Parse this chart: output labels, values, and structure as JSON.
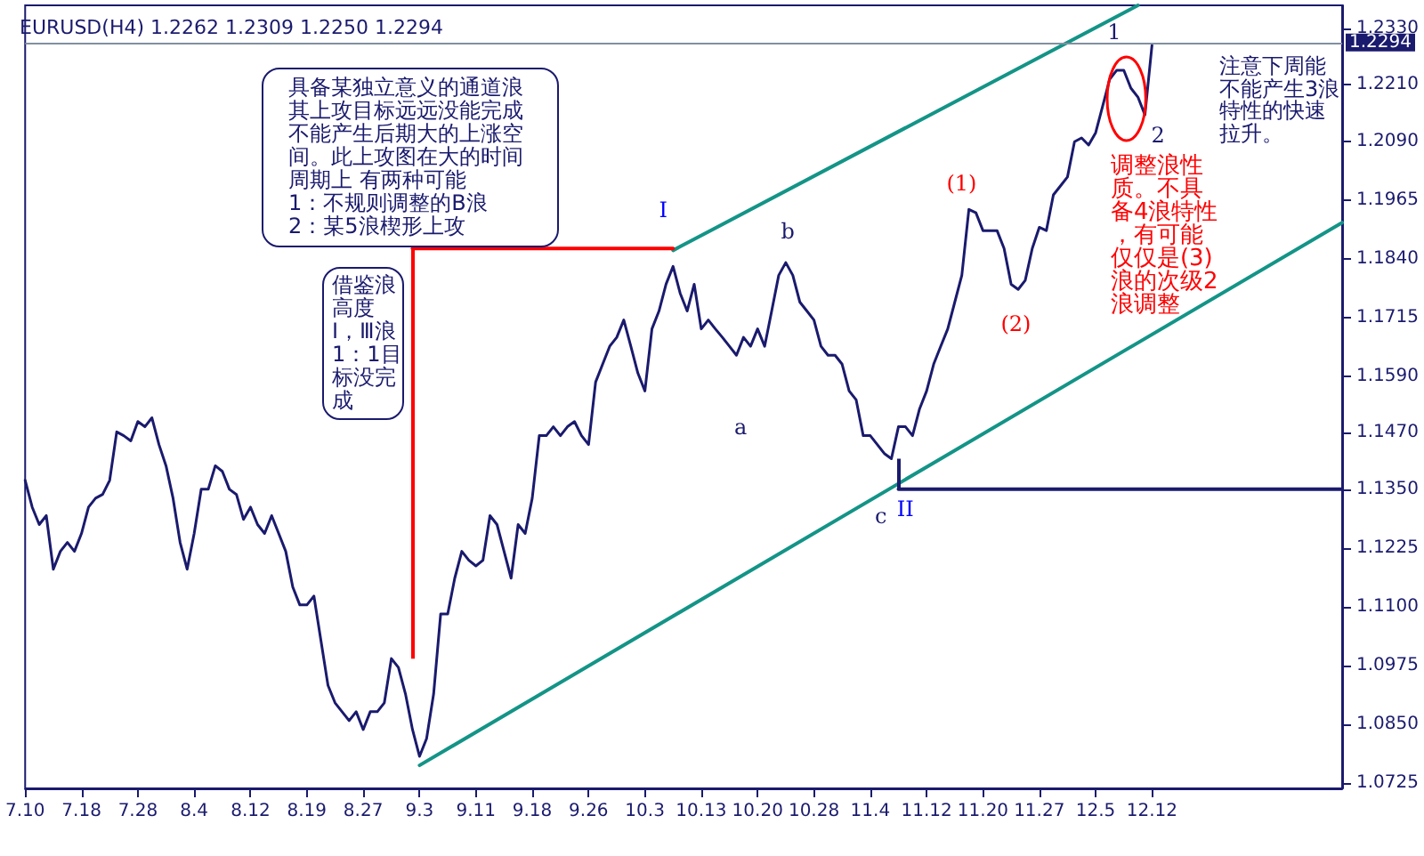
{
  "chart_data": {
    "type": "line",
    "title": "EURUSD(H4) 1.2262 1.2309 1.2250 1.2294",
    "categories": [
      "7.10",
      null,
      null,
      null,
      null,
      null,
      null,
      null,
      "7.18",
      null,
      null,
      null,
      null,
      null,
      null,
      null,
      "7.28",
      null,
      null,
      null,
      null,
      null,
      null,
      null,
      "8.4",
      null,
      null,
      null,
      null,
      null,
      null,
      null,
      "8.12",
      null,
      null,
      null,
      null,
      null,
      null,
      null,
      "8.19",
      null,
      null,
      null,
      null,
      null,
      null,
      null,
      "8.27",
      null,
      null,
      null,
      null,
      null,
      null,
      null,
      "9.3",
      null,
      null,
      null,
      null,
      null,
      null,
      null,
      "9.11",
      null,
      null,
      null,
      null,
      null,
      null,
      null,
      "9.18",
      null,
      null,
      null,
      null,
      null,
      null,
      null,
      "9.26",
      null,
      null,
      null,
      null,
      null,
      null,
      null,
      "10.3",
      null,
      null,
      null,
      null,
      null,
      null,
      null,
      "10.13",
      null,
      null,
      null,
      null,
      null,
      null,
      null,
      "10.20",
      null,
      null,
      null,
      null,
      null,
      null,
      null,
      "10.28",
      null,
      null,
      null,
      null,
      null,
      null,
      null,
      "11.4",
      null,
      null,
      null,
      null,
      null,
      null,
      null,
      "11.12",
      null,
      null,
      null,
      null,
      null,
      null,
      null,
      "11.20",
      null,
      null,
      null,
      null,
      null,
      null,
      null,
      "11.27",
      null,
      null,
      null,
      null,
      null,
      null,
      null,
      "12.5",
      null,
      null,
      null,
      null,
      null,
      null,
      null,
      "12.12",
      null,
      null,
      null,
      null,
      null,
      null,
      null,
      null,
      null,
      null,
      null,
      null,
      null,
      null,
      null,
      null,
      null,
      null,
      null,
      null,
      null,
      null,
      null,
      null,
      null,
      null,
      null
    ],
    "series": [
      {
        "color": "#1a1a6e",
        "values": [
          1.1369,
          1.1312,
          1.1275,
          1.1294,
          1.118,
          1.1218,
          1.1237,
          1.1218,
          1.1256,
          1.1312,
          1.1331,
          1.1339,
          1.1369,
          1.1472,
          1.1464,
          1.1453,
          1.1494,
          1.1483,
          1.1502,
          1.1445,
          1.14,
          1.1331,
          1.1237,
          1.118,
          1.1256,
          1.135,
          1.135,
          1.14,
          1.1388,
          1.135,
          1.1339,
          1.1286,
          1.1312,
          1.1275,
          1.1256,
          1.1294,
          1.1256,
          1.1218,
          1.1142,
          1.1104,
          1.1104,
          1.1123,
          1.1028,
          1.0933,
          1.0896,
          1.0877,
          1.0858,
          1.0877,
          1.0839,
          1.0877,
          1.0877,
          1.0896,
          1.099,
          1.0971,
          1.0915,
          1.0839,
          1.0782,
          1.082,
          1.0915,
          1.1085,
          1.1085,
          1.1161,
          1.1218,
          1.1199,
          1.1187,
          1.1199,
          1.1294,
          1.1275,
          1.1218,
          1.1161,
          1.1275,
          1.1256,
          1.1331,
          1.1464,
          1.1464,
          1.1483,
          1.1464,
          1.1483,
          1.1494,
          1.1464,
          1.1445,
          1.1578,
          1.1616,
          1.1654,
          1.1673,
          1.171,
          1.1654,
          1.1597,
          1.1559,
          1.1691,
          1.1729,
          1.1786,
          1.1824,
          1.1767,
          1.1729,
          1.1786,
          1.1691,
          1.171,
          1.1691,
          1.1673,
          1.1654,
          1.1635,
          1.1673,
          1.1654,
          1.1691,
          1.1654,
          1.1729,
          1.1805,
          1.1832,
          1.1805,
          1.1748,
          1.1729,
          1.171,
          1.1654,
          1.1635,
          1.1635,
          1.1616,
          1.1559,
          1.154,
          1.1464,
          1.1464,
          1.1445,
          1.1426,
          1.1415,
          1.1483,
          1.1483,
          1.1464,
          1.1521,
          1.1559,
          1.1616,
          1.1654,
          1.1691,
          1.1748,
          1.1805,
          1.1945,
          1.1938,
          1.19,
          1.19,
          1.19,
          1.1862,
          1.1786,
          1.1775,
          1.1794,
          1.1862,
          1.1907,
          1.19,
          1.1976,
          1.1995,
          1.2014,
          1.2089,
          1.2097,
          1.2082,
          1.2108,
          1.2165,
          1.2222,
          1.2241,
          1.2241,
          1.2203,
          1.2184,
          1.2146,
          1.2294,
          null,
          null,
          null,
          null,
          null,
          null,
          null,
          null,
          null,
          null,
          null,
          null,
          null,
          null,
          null,
          null,
          null,
          null,
          null,
          null,
          null,
          null,
          null,
          null,
          null,
          null,
          null
        ]
      },
      {
        "color": "#139487",
        "values": [
          null,
          null,
          null,
          null,
          null,
          null,
          null,
          null,
          null,
          null,
          null,
          null,
          null,
          null,
          null,
          null,
          null,
          null,
          null,
          null,
          null,
          null,
          null,
          null,
          null,
          null,
          null,
          null,
          null,
          null,
          null,
          null,
          null,
          null,
          null,
          null,
          null,
          null,
          null,
          null,
          null,
          null,
          null,
          null,
          null,
          null,
          null,
          null,
          null,
          null,
          null,
          null,
          null,
          null,
          null,
          null,
          null,
          null,
          null,
          null,
          null,
          null,
          null,
          null,
          null,
          null,
          null,
          null,
          null,
          null,
          null,
          null,
          null,
          null,
          null,
          null,
          null,
          null,
          null,
          null,
          null,
          null,
          null,
          null,
          null,
          null,
          null,
          null,
          null,
          null,
          null,
          null,
          1.1858,
          null,
          null,
          null,
          null,
          null,
          null,
          null,
          null,
          null,
          null,
          null,
          null,
          null,
          null,
          null,
          null,
          null,
          null,
          null,
          null,
          null,
          null,
          null,
          null,
          null,
          null,
          null,
          null,
          null,
          null,
          null,
          null,
          null,
          null,
          null,
          null,
          null,
          null,
          null,
          null,
          null,
          null,
          null,
          null,
          null,
          null,
          null,
          null,
          null,
          null,
          null,
          null,
          null,
          null,
          null,
          null,
          null,
          null,
          null,
          null,
          null,
          null,
          null,
          null,
          null,
          1.2379,
          null,
          null,
          null,
          null,
          null,
          null,
          null,
          null,
          null,
          null,
          null,
          null,
          null,
          null,
          null,
          null,
          null,
          null,
          null,
          null,
          null,
          null,
          null,
          null,
          null,
          null,
          null,
          null,
          null
        ]
      },
      {
        "color": "#139487",
        "values": [
          null,
          null,
          null,
          null,
          null,
          null,
          null,
          null,
          null,
          null,
          null,
          null,
          null,
          null,
          null,
          null,
          null,
          null,
          null,
          null,
          null,
          null,
          null,
          null,
          null,
          null,
          null,
          null,
          null,
          null,
          null,
          null,
          null,
          null,
          null,
          null,
          null,
          null,
          null,
          null,
          null,
          null,
          null,
          null,
          null,
          null,
          null,
          null,
          null,
          null,
          null,
          null,
          null,
          null,
          null,
          null,
          1.0763,
          null,
          null,
          null,
          null,
          null,
          null,
          null,
          null,
          null,
          null,
          null,
          null,
          null,
          null,
          null,
          null,
          null,
          null,
          null,
          null,
          null,
          null,
          null,
          null,
          null,
          null,
          null,
          null,
          null,
          null,
          null,
          null,
          null,
          null,
          null,
          null,
          null,
          null,
          null,
          null,
          null,
          null,
          null,
          null,
          null,
          null,
          null,
          null,
          null,
          null,
          null,
          null,
          null,
          null,
          null,
          null,
          null,
          null,
          null,
          null,
          null,
          null,
          null,
          null,
          null,
          null,
          null,
          null,
          null,
          null,
          null,
          null,
          null,
          null,
          null,
          null,
          null,
          null,
          null,
          null,
          null,
          null,
          null,
          null,
          null,
          null,
          null,
          null,
          null,
          null,
          null,
          null,
          null,
          null,
          null,
          null,
          null,
          null,
          null,
          null,
          null,
          null,
          null,
          null,
          null,
          null,
          null,
          null,
          null,
          null,
          null,
          null,
          null,
          null,
          null,
          null,
          null,
          null,
          null,
          null,
          null,
          null,
          null,
          null,
          null,
          null,
          null,
          null,
          null,
          null,
          1.1917
        ]
      },
      {
        "color": "#ff0000",
        "values": [
          null,
          null,
          null,
          null,
          null,
          null,
          null,
          null,
          null,
          null,
          null,
          null,
          null,
          null,
          null,
          null,
          null,
          null,
          null,
          null,
          null,
          null,
          null,
          null,
          null,
          null,
          null,
          null,
          null,
          null,
          null,
          null,
          null,
          null,
          null,
          null,
          null,
          null,
          null,
          null,
          null,
          null,
          null,
          null,
          null,
          null,
          null,
          null,
          null,
          null,
          null,
          null,
          null,
          null,
          null,
          1.1862,
          null,
          null,
          null,
          null,
          null,
          null,
          null,
          null,
          null,
          null,
          null,
          null,
          null,
          null,
          null,
          null,
          null,
          null,
          null,
          null,
          null,
          null,
          null,
          null,
          null,
          null,
          null,
          null,
          null,
          null,
          null,
          null,
          null,
          null,
          null,
          null,
          1.1862,
          null,
          null,
          null,
          null,
          null,
          null,
          null,
          null,
          null,
          null,
          null,
          null,
          null,
          null,
          null,
          null,
          null,
          null,
          null,
          null,
          null,
          null,
          null,
          null,
          null,
          null,
          null,
          null,
          null,
          null,
          null,
          null,
          null,
          null,
          null,
          null,
          null,
          null,
          null,
          null,
          null,
          null,
          null,
          null,
          null,
          null,
          null,
          null,
          null,
          null,
          null,
          null,
          null,
          null,
          null,
          null,
          null,
          null,
          null,
          null,
          null,
          null,
          null,
          null,
          null,
          null,
          null,
          null,
          null,
          null,
          null,
          null,
          null,
          null,
          null,
          null,
          null,
          null,
          null,
          null,
          null,
          null,
          null,
          null,
          null,
          null,
          null,
          null,
          null,
          null,
          null,
          null,
          null,
          null,
          null
        ],
        "errors": [
          null,
          null,
          null,
          null,
          null,
          null,
          null,
          null,
          null,
          null,
          null,
          null,
          null,
          null,
          null,
          null,
          null,
          null,
          null,
          null,
          null,
          null,
          null,
          null,
          null,
          null,
          null,
          null,
          null,
          null,
          null,
          null,
          null,
          null,
          null,
          null,
          null,
          null,
          null,
          null,
          null,
          null,
          null,
          null,
          null,
          null,
          null,
          null,
          null,
          null,
          null,
          null,
          null,
          null,
          null,
          [
            1.099,
            1.1862
          ],
          null,
          null,
          null,
          null,
          null,
          null,
          null,
          null,
          null,
          null,
          null,
          null,
          null,
          null,
          null,
          null,
          null,
          null,
          null,
          null,
          null,
          null,
          null,
          null,
          null,
          null,
          null,
          null,
          null,
          null,
          null,
          null,
          null,
          null,
          null,
          null,
          null,
          null,
          null,
          null,
          null,
          null,
          null,
          null,
          null,
          null,
          null,
          null,
          null,
          null,
          null,
          null,
          null,
          null,
          null,
          null,
          null,
          null,
          null,
          null,
          null,
          null,
          null,
          null,
          null,
          null,
          null,
          null,
          null,
          null,
          null,
          null,
          null,
          null,
          null,
          null,
          null,
          null,
          null,
          null,
          null,
          null,
          null,
          null,
          null,
          null,
          null,
          null,
          null,
          null,
          null,
          null,
          null,
          null,
          null,
          null,
          null,
          null,
          null,
          null,
          null,
          null,
          null,
          null,
          null,
          null,
          null,
          null,
          null,
          null,
          null,
          null,
          null,
          null,
          null,
          null,
          null,
          null,
          null,
          null,
          null,
          null,
          null,
          null,
          null,
          null,
          null,
          null,
          null,
          null,
          null,
          null
        ]
      },
      {
        "color": "#1a1a6e",
        "values": [
          null,
          null,
          null,
          null,
          null,
          null,
          null,
          null,
          null,
          null,
          null,
          null,
          null,
          null,
          null,
          null,
          null,
          null,
          null,
          null,
          null,
          null,
          null,
          null,
          null,
          null,
          null,
          null,
          null,
          null,
          null,
          null,
          null,
          null,
          null,
          null,
          null,
          null,
          null,
          null,
          null,
          null,
          null,
          null,
          null,
          null,
          null,
          null,
          null,
          null,
          null,
          null,
          null,
          null,
          null,
          null,
          null,
          null,
          null,
          null,
          null,
          null,
          null,
          null,
          null,
          null,
          null,
          null,
          null,
          null,
          null,
          null,
          null,
          null,
          null,
          null,
          null,
          null,
          null,
          null,
          null,
          null,
          null,
          null,
          null,
          null,
          null,
          null,
          null,
          null,
          null,
          null,
          null,
          null,
          null,
          null,
          null,
          null,
          null,
          null,
          null,
          null,
          null,
          null,
          null,
          null,
          null,
          null,
          null,
          null,
          null,
          null,
          null,
          null,
          null,
          null,
          null,
          null,
          null,
          null,
          null,
          null,
          null,
          null,
          1.135,
          null,
          null,
          null,
          null,
          null,
          null,
          null,
          null,
          null,
          null,
          null,
          null,
          null,
          null,
          null,
          null,
          null,
          null,
          null,
          null,
          null,
          null,
          null,
          null,
          null,
          null,
          null,
          null,
          null,
          null,
          null,
          null,
          null,
          null,
          null,
          null,
          null,
          null,
          null,
          null,
          null,
          null,
          null,
          null,
          null,
          null,
          null,
          null,
          null,
          null,
          null,
          null,
          null,
          null,
          null,
          null,
          null,
          null,
          null,
          null,
          null,
          null,
          1.135
        ],
        "errors": [
          null,
          null,
          null,
          null,
          null,
          null,
          null,
          null,
          null,
          null,
          null,
          null,
          null,
          null,
          null,
          null,
          null,
          null,
          null,
          null,
          null,
          null,
          null,
          null,
          null,
          null,
          null,
          null,
          null,
          null,
          null,
          null,
          null,
          null,
          null,
          null,
          null,
          null,
          null,
          null,
          null,
          null,
          null,
          null,
          null,
          null,
          null,
          null,
          null,
          null,
          null,
          null,
          null,
          null,
          null,
          null,
          null,
          null,
          null,
          null,
          null,
          null,
          null,
          null,
          null,
          null,
          null,
          null,
          null,
          null,
          null,
          null,
          null,
          null,
          null,
          null,
          null,
          null,
          null,
          null,
          null,
          null,
          null,
          null,
          null,
          null,
          null,
          null,
          null,
          null,
          null,
          null,
          null,
          null,
          null,
          null,
          null,
          null,
          null,
          null,
          null,
          null,
          null,
          null,
          null,
          null,
          null,
          null,
          null,
          null,
          null,
          null,
          null,
          null,
          null,
          null,
          null,
          null,
          null,
          null,
          null,
          null,
          null,
          null,
          [
            1.135,
            1.1415
          ],
          null,
          null,
          null,
          null,
          null,
          null,
          null,
          null,
          null,
          null,
          null,
          null,
          null,
          null,
          null,
          null,
          null,
          null,
          null,
          null,
          null,
          null,
          null,
          null,
          null,
          null,
          null,
          null,
          null,
          null,
          null,
          null,
          null,
          null,
          null,
          null,
          null,
          null,
          null,
          null,
          null,
          null,
          null,
          null,
          null,
          null,
          null,
          null,
          null,
          null,
          null,
          null,
          null,
          null,
          null,
          null,
          null,
          null,
          null,
          null,
          null,
          null,
          null
        ]
      }
    ],
    "ylim": [
      1.0714,
      1.2379
    ],
    "yticks": [
      {
        "value": 1.0725,
        "label": "1.0725"
      },
      {
        "value": 1.085,
        "label": "1.0850"
      },
      {
        "value": 1.0975,
        "label": "1.0975"
      },
      {
        "value": 1.11,
        "label": "1.1100"
      },
      {
        "value": 1.1225,
        "label": "1.1225"
      },
      {
        "value": 1.135,
        "label": "1.1350"
      },
      {
        "value": 1.147,
        "label": "1.1470"
      },
      {
        "value": 1.159,
        "label": "1.1590"
      },
      {
        "value": 1.1715,
        "label": "1.1715"
      },
      {
        "value": 1.184,
        "label": "1.1840"
      },
      {
        "value": 1.1965,
        "label": "1.1965"
      },
      {
        "value": 1.209,
        "label": "1.2090"
      },
      {
        "value": 1.221,
        "label": "1.2210"
      },
      {
        "value": 1.233,
        "label": "1.2330"
      }
    ],
    "ref_lines": [
      {
        "axis": "y",
        "value": 1.2294,
        "label": "1.2294",
        "color": "#8090a0"
      }
    ],
    "annotations": [
      "I",
      "b",
      "a",
      "c",
      "II",
      "(1)",
      "(2)",
      "1",
      "2",
      "具备某独立意义的通道浪其上攻目标远远没能完成不能产生后期大的上涨空间。此上攻图在大的时间周期上 有两种可能",
      "1：不规则调整的B浪",
      "2：某5浪楔形上攻",
      "借鉴浪高度",
      "Ⅰ，Ⅲ浪1：1目标没完成",
      "调整浪性质。不具备4浪特性，有可能仅仅是(3)浪的次级2浪调整",
      "注意下周能不能产生3浪特性的快速拉升。"
    ],
    "grid": false,
    "marker": "none"
  }
}
